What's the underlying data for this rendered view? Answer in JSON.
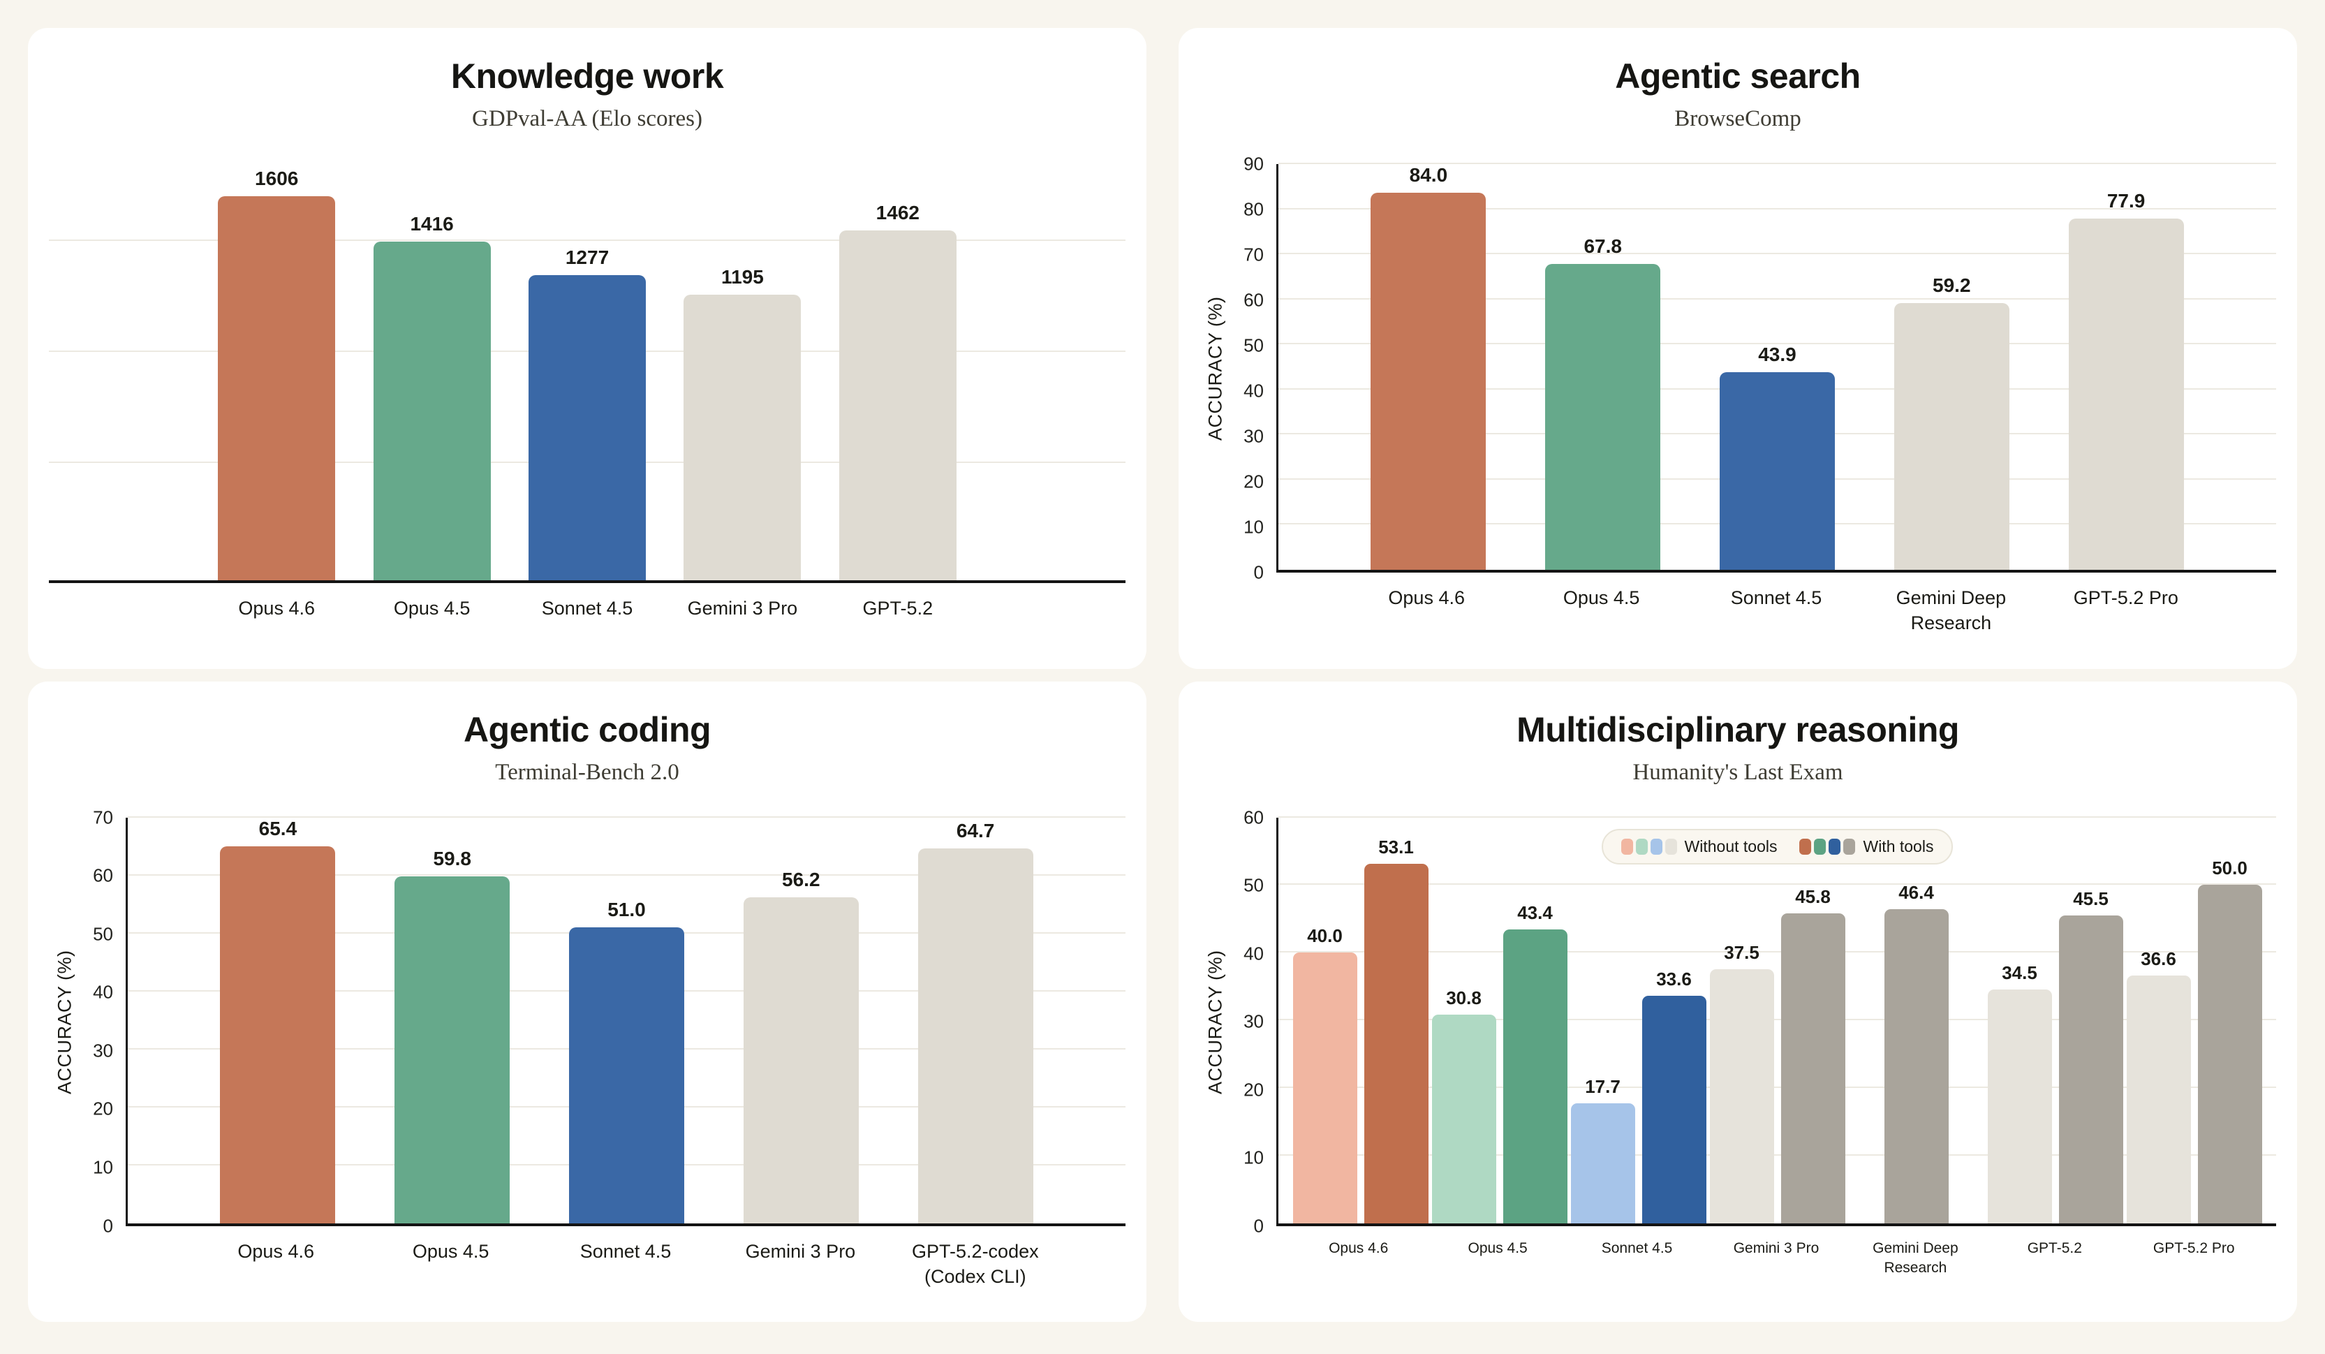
{
  "page": {
    "background": "#F8F5EE",
    "card_background": "#FFFFFF"
  },
  "chart_data": [
    {
      "id": "knowledge-work",
      "type": "bar",
      "title": "Knowledge work",
      "subtitle": "GDPval-AA (Elo scores)",
      "categories": [
        "Opus 4.6",
        "Opus 4.5",
        "Sonnet 4.5",
        "Gemini 3 Pro",
        "GPT-5.2"
      ],
      "values": [
        1606,
        1416,
        1277,
        1195,
        1462
      ],
      "value_labels": [
        "1606",
        "1416",
        "1277",
        "1195",
        "1462"
      ],
      "bar_colors": [
        "#C57758",
        "#66A98B",
        "#3A68A6",
        "#DFDBD2",
        "#DFDBD2"
      ],
      "ylabel": null,
      "ylim": [
        0,
        1740
      ],
      "ytick_step": null,
      "grid_values": [
        490,
        955,
        1420
      ],
      "show_yaxis": false,
      "grid_on": true,
      "legend": null
    },
    {
      "id": "agentic-search",
      "type": "bar",
      "title": "Agentic search",
      "subtitle": "BrowseComp",
      "categories": [
        "Opus 4.6",
        "Opus 4.5",
        "Sonnet 4.5",
        "Gemini Deep\nResearch",
        "GPT-5.2 Pro"
      ],
      "values": [
        84.0,
        67.8,
        43.9,
        59.2,
        77.9
      ],
      "value_labels": [
        "84.0",
        "67.8",
        "43.9",
        "59.2",
        "77.9"
      ],
      "bar_colors": [
        "#C57758",
        "#66A98B",
        "#3A68A6",
        "#DFDBD2",
        "#DFDBD2"
      ],
      "ylabel": "ACCURACY (%)",
      "ylim": [
        0,
        90
      ],
      "ytick_step": 10,
      "grid_values": null,
      "show_yaxis": true,
      "grid_on": true,
      "legend": null
    },
    {
      "id": "agentic-coding",
      "type": "bar",
      "title": "Agentic coding",
      "subtitle": "Terminal-Bench 2.0",
      "categories": [
        "Opus 4.6",
        "Opus 4.5",
        "Sonnet 4.5",
        "Gemini 3 Pro",
        "GPT-5.2-codex\n(Codex CLI)"
      ],
      "values": [
        65.4,
        59.8,
        51.0,
        56.2,
        64.7
      ],
      "value_labels": [
        "65.4",
        "59.8",
        "51.0",
        "56.2",
        "64.7"
      ],
      "bar_colors": [
        "#C57758",
        "#66A98B",
        "#3A68A6",
        "#DFDBD2",
        "#DFDBD2"
      ],
      "ylabel": "ACCURACY (%)",
      "ylim": [
        0,
        70
      ],
      "ytick_step": 10,
      "grid_values": null,
      "show_yaxis": true,
      "grid_on": true,
      "legend": null
    },
    {
      "id": "multidisciplinary-reasoning",
      "type": "grouped_bar",
      "title": "Multidisciplinary reasoning",
      "subtitle": "Humanity's Last Exam",
      "categories": [
        "Opus 4.6",
        "Opus 4.5",
        "Sonnet 4.5",
        "Gemini 3 Pro",
        "Gemini Deep\nResearch",
        "GPT-5.2",
        "GPT-5.2 Pro"
      ],
      "series": [
        {
          "name": "Without tools",
          "values": [
            40.0,
            30.8,
            17.7,
            37.5,
            null,
            34.5,
            36.6
          ],
          "labels": [
            "40.0",
            "30.8",
            "17.7",
            "37.5",
            null,
            "34.5",
            "36.6"
          ],
          "colors": [
            "#F1B6A1",
            "#AFD9C3",
            "#A6C4E9",
            "#E6E3DB",
            null,
            "#E6E3DB",
            "#E6E3DB"
          ]
        },
        {
          "name": "With tools",
          "values": [
            53.1,
            43.4,
            33.6,
            45.8,
            46.4,
            45.5,
            50.0
          ],
          "labels": [
            "53.1",
            "43.4",
            "33.6",
            "45.8",
            "46.4",
            "45.5",
            "50.0"
          ],
          "colors": [
            "#C06F4D",
            "#5CA383",
            "#30609E",
            "#A9A49B",
            "#A9A49B",
            "#A9A49B",
            "#A9A49B"
          ]
        }
      ],
      "legend": {
        "entries": [
          {
            "label": "Without tools",
            "swatches": [
              "#F1B6A1",
              "#AFD9C3",
              "#A6C4E9",
              "#E6E3DB"
            ]
          },
          {
            "label": "With tools",
            "swatches": [
              "#C06F4D",
              "#5CA383",
              "#30609E",
              "#A9A49B"
            ]
          }
        ]
      },
      "ylabel": "ACCURACY (%)",
      "ylim": [
        0,
        60
      ],
      "ytick_step": 10,
      "grid_values": null,
      "show_yaxis": true,
      "grid_on": true
    }
  ]
}
